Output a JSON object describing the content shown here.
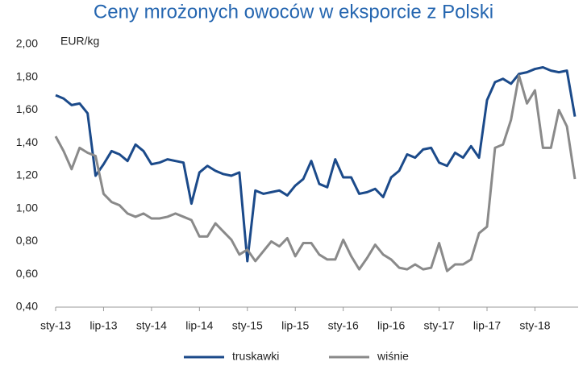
{
  "chart_data": {
    "type": "line",
    "title": "Ceny mrożonych owoców w eksporcie z Polski",
    "y_label": "EUR/kg",
    "categories": [
      "sty-13",
      null,
      null,
      null,
      null,
      null,
      "lip-13",
      null,
      null,
      null,
      null,
      null,
      "sty-14",
      null,
      null,
      null,
      null,
      null,
      "lip-14",
      null,
      null,
      null,
      null,
      null,
      "sty-15",
      null,
      null,
      null,
      null,
      null,
      "lip-15",
      null,
      null,
      null,
      null,
      null,
      "sty-16",
      null,
      null,
      null,
      null,
      null,
      "lip-16",
      null,
      null,
      null,
      null,
      null,
      "sty-17",
      null,
      null,
      null,
      null,
      null,
      "lip-17",
      null,
      null,
      null,
      null,
      null,
      "sty-18",
      null,
      null,
      null,
      null,
      null
    ],
    "series": [
      {
        "name": "truskawki",
        "color": "#1b4a8a",
        "values": [
          1.69,
          1.67,
          1.63,
          1.64,
          1.58,
          1.2,
          1.27,
          1.35,
          1.33,
          1.29,
          1.39,
          1.35,
          1.27,
          1.28,
          1.3,
          1.29,
          1.28,
          1.03,
          1.22,
          1.26,
          1.23,
          1.21,
          1.2,
          1.22,
          0.68,
          1.11,
          1.09,
          1.1,
          1.11,
          1.08,
          1.14,
          1.18,
          1.29,
          1.15,
          1.13,
          1.3,
          1.19,
          1.19,
          1.09,
          1.1,
          1.12,
          1.07,
          1.19,
          1.23,
          1.33,
          1.31,
          1.36,
          1.37,
          1.28,
          1.26,
          1.34,
          1.31,
          1.38,
          1.31,
          1.66,
          1.77,
          1.79,
          1.76,
          1.82,
          1.83,
          1.85,
          1.86,
          1.84,
          1.83,
          1.84,
          1.56
        ]
      },
      {
        "name": "wiśnie",
        "color": "#8a8a8a",
        "values": [
          1.44,
          1.35,
          1.24,
          1.37,
          1.34,
          1.32,
          1.09,
          1.04,
          1.02,
          0.97,
          0.95,
          0.97,
          0.94,
          0.94,
          0.95,
          0.97,
          0.95,
          0.93,
          0.83,
          0.83,
          0.91,
          0.86,
          0.81,
          0.72,
          0.75,
          0.68,
          0.74,
          0.8,
          0.77,
          0.82,
          0.71,
          0.79,
          0.79,
          0.72,
          0.69,
          0.69,
          0.81,
          0.71,
          0.63,
          0.7,
          0.78,
          0.72,
          0.69,
          0.64,
          0.63,
          0.66,
          0.63,
          0.64,
          0.79,
          0.62,
          0.66,
          0.66,
          0.69,
          0.85,
          0.89,
          1.37,
          1.39,
          1.54,
          1.81,
          1.64,
          1.72,
          1.37,
          1.37,
          1.6,
          1.5,
          1.18
        ]
      }
    ],
    "ylim": [
      0.4,
      2.0
    ],
    "yticks": [
      {
        "value": 0.4,
        "label": "0,40"
      },
      {
        "value": 0.6,
        "label": "0,60"
      },
      {
        "value": 0.8,
        "label": "0,80"
      },
      {
        "value": 1.0,
        "label": "1,00"
      },
      {
        "value": 1.2,
        "label": "1,20"
      },
      {
        "value": 1.4,
        "label": "1,40"
      },
      {
        "value": 1.6,
        "label": "1,60"
      },
      {
        "value": 1.8,
        "label": "1,80"
      },
      {
        "value": 2.0,
        "label": "2,00"
      }
    ],
    "grid": false,
    "legend": "bottom"
  }
}
